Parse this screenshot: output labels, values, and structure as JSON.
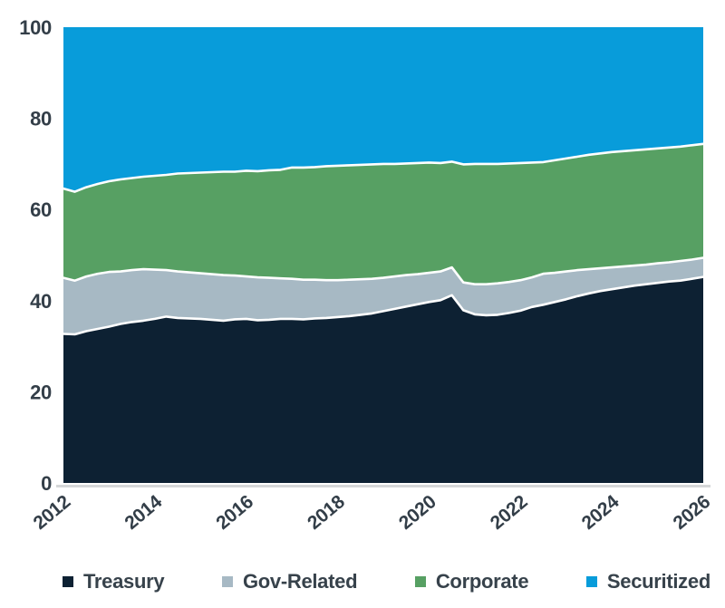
{
  "figure": {
    "background_color": "#ffffff",
    "text_color": "#333e48",
    "axis_line_color": "#d5d7d8",
    "boundary_line_color": "#ffffff"
  },
  "chart_data": {
    "type": "area",
    "stacked": true,
    "unit": "percent_share",
    "title": "",
    "xlabel": "",
    "ylabel": "",
    "xlim": [
      2012,
      2026
    ],
    "ylim": [
      0,
      100
    ],
    "x_ticks": [
      2012,
      2014,
      2016,
      2018,
      2020,
      2022,
      2024,
      2026
    ],
    "y_ticks": [
      0,
      20,
      40,
      60,
      80,
      100
    ],
    "grid": false,
    "legend_position": "bottom",
    "x": [
      2012,
      2012.25,
      2012.5,
      2012.75,
      2013,
      2013.25,
      2013.5,
      2013.75,
      2014,
      2014.25,
      2014.5,
      2014.75,
      2015,
      2015.25,
      2015.5,
      2015.75,
      2016,
      2016.25,
      2016.5,
      2016.75,
      2017,
      2017.25,
      2017.5,
      2017.75,
      2018,
      2018.25,
      2018.5,
      2018.75,
      2019,
      2019.25,
      2019.5,
      2019.75,
      2020,
      2020.25,
      2020.5,
      2020.75,
      2021,
      2021.25,
      2021.5,
      2021.75,
      2022,
      2022.25,
      2022.5,
      2022.75,
      2023,
      2023.25,
      2023.5,
      2023.75,
      2024,
      2024.25,
      2024.5,
      2024.75,
      2025,
      2025.25,
      2025.5,
      2025.75,
      2026
    ],
    "series": [
      {
        "name": "Treasury",
        "color": "#0d2133",
        "values": [
          32.7,
          32.6,
          33.3,
          33.8,
          34.3,
          34.9,
          35.3,
          35.6,
          36.0,
          36.5,
          36.2,
          36.1,
          36.0,
          35.8,
          35.6,
          35.9,
          36.0,
          35.7,
          35.8,
          36.0,
          36.0,
          35.9,
          36.1,
          36.2,
          36.4,
          36.6,
          36.9,
          37.2,
          37.7,
          38.2,
          38.7,
          39.2,
          39.7,
          40.1,
          41.2,
          37.9,
          37.0,
          36.8,
          36.9,
          37.3,
          37.8,
          38.6,
          39.1,
          39.7,
          40.3,
          41.0,
          41.6,
          42.1,
          42.5,
          42.9,
          43.3,
          43.6,
          43.9,
          44.2,
          44.4,
          44.8,
          45.2
        ]
      },
      {
        "name": "Gov-Related",
        "color": "#a7b9c4",
        "values": [
          12.3,
          11.8,
          12.0,
          12.1,
          12.0,
          11.5,
          11.4,
          11.3,
          10.8,
          10.2,
          10.2,
          10.1,
          10.0,
          10.0,
          10.0,
          9.6,
          9.3,
          9.4,
          9.2,
          8.9,
          8.8,
          8.7,
          8.5,
          8.3,
          8.1,
          8.0,
          7.8,
          7.6,
          7.3,
          7.1,
          6.9,
          6.6,
          6.4,
          6.3,
          6.1,
          6.1,
          6.6,
          6.8,
          6.9,
          6.8,
          6.7,
          6.5,
          6.8,
          6.4,
          6.1,
          5.7,
          5.3,
          5.0,
          4.8,
          4.6,
          4.4,
          4.3,
          4.3,
          4.2,
          4.3,
          4.2,
          4.2
        ]
      },
      {
        "name": "Corporate",
        "color": "#57a063",
        "values": [
          19.6,
          19.5,
          19.6,
          19.7,
          19.9,
          20.2,
          20.2,
          20.3,
          20.6,
          20.9,
          21.5,
          21.8,
          22.1,
          22.4,
          22.7,
          22.8,
          23.2,
          23.3,
          23.6,
          23.8,
          24.4,
          24.6,
          24.7,
          25.0,
          25.1,
          25.1,
          25.1,
          25.1,
          25.0,
          24.7,
          24.5,
          24.4,
          24.2,
          23.8,
          23.2,
          25.9,
          26.4,
          26.4,
          26.2,
          26.0,
          25.7,
          25.2,
          24.5,
          24.7,
          24.8,
          24.9,
          25.1,
          25.2,
          25.3,
          25.3,
          25.3,
          25.3,
          25.2,
          25.2,
          25.1,
          25.1,
          25.0
        ]
      },
      {
        "name": "Securitized",
        "color": "#089cda",
        "values": [
          35.4,
          36.1,
          35.1,
          34.4,
          33.8,
          33.4,
          33.1,
          32.8,
          32.6,
          32.4,
          32.1,
          32.0,
          31.9,
          31.8,
          31.7,
          31.7,
          31.5,
          31.6,
          31.4,
          31.3,
          30.8,
          30.8,
          30.7,
          30.5,
          30.4,
          30.3,
          30.2,
          30.1,
          30.0,
          30.0,
          29.9,
          29.8,
          29.7,
          29.8,
          29.5,
          30.1,
          30.0,
          30.0,
          30.0,
          29.9,
          29.8,
          29.7,
          29.6,
          29.2,
          28.8,
          28.4,
          28.0,
          27.7,
          27.4,
          27.2,
          27.0,
          26.8,
          26.6,
          26.4,
          26.2,
          25.9,
          25.6
        ]
      }
    ]
  }
}
